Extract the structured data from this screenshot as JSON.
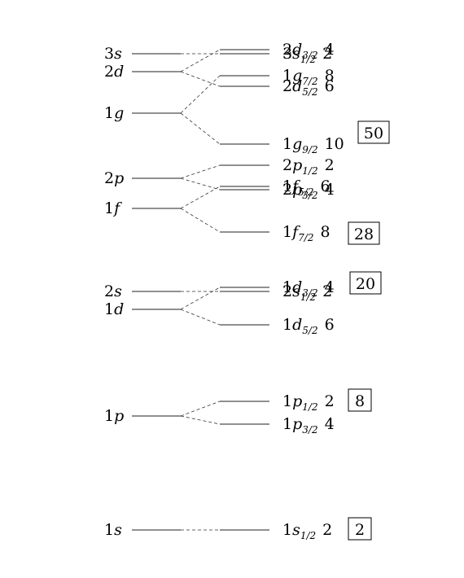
{
  "colors": {
    "line": "#222222",
    "dash": "#333333",
    "text": "#000000",
    "background": "#ffffff"
  },
  "shells": [
    {
      "n": "1",
      "l": "s",
      "split": [
        {
          "n": "1",
          "l": "s",
          "j": "1/2",
          "deg": "2"
        }
      ]
    },
    {
      "n": "1",
      "l": "p",
      "split": [
        {
          "n": "1",
          "l": "p",
          "j": "1/2",
          "deg": "2"
        },
        {
          "n": "1",
          "l": "p",
          "j": "3/2",
          "deg": "4"
        }
      ]
    },
    {
      "n": "1",
      "l": "d",
      "split": [
        {
          "n": "1",
          "l": "d",
          "j": "3/2",
          "deg": "4"
        },
        {
          "n": "1",
          "l": "d",
          "j": "5/2",
          "deg": "6"
        }
      ]
    },
    {
      "n": "2",
      "l": "s",
      "split": [
        {
          "n": "2",
          "l": "s",
          "j": "1/2",
          "deg": "2"
        }
      ]
    },
    {
      "n": "1",
      "l": "f",
      "split": [
        {
          "n": "1",
          "l": "f",
          "j": "5/2",
          "deg": "6"
        },
        {
          "n": "1",
          "l": "f",
          "j": "7/2",
          "deg": "8"
        }
      ]
    },
    {
      "n": "2",
      "l": "p",
      "split": [
        {
          "n": "2",
          "l": "p",
          "j": "1/2",
          "deg": "2"
        },
        {
          "n": "2",
          "l": "p",
          "j": "3/2",
          "deg": "4"
        }
      ]
    },
    {
      "n": "1",
      "l": "g",
      "split": [
        {
          "n": "1",
          "l": "g",
          "j": "7/2",
          "deg": "8"
        },
        {
          "n": "1",
          "l": "g",
          "j": "9/2",
          "deg": "10"
        }
      ]
    },
    {
      "n": "2",
      "l": "d",
      "split": [
        {
          "n": "2",
          "l": "d",
          "j": "3/2",
          "deg": "4"
        },
        {
          "n": "2",
          "l": "d",
          "j": "5/2",
          "deg": "6"
        }
      ]
    },
    {
      "n": "3",
      "l": "s",
      "split": [
        {
          "n": "3",
          "l": "s",
          "j": "1/2",
          "deg": "2"
        }
      ]
    }
  ],
  "magic_numbers": [
    "2",
    "8",
    "20",
    "28",
    "50"
  ]
}
